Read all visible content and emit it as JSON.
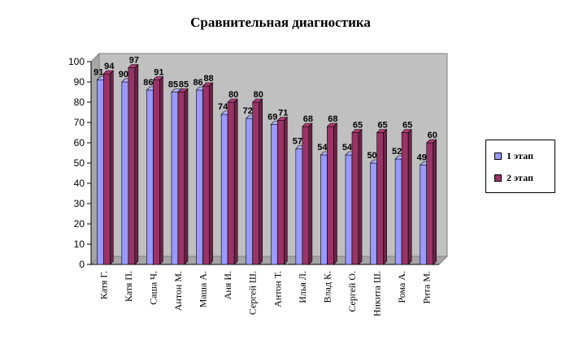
{
  "chart_data": {
    "type": "bar",
    "title": "Сравнительная диагностика",
    "categories": [
      "Катя Г.",
      "Катя П.",
      "Саша Ч.",
      "Антон М.",
      "Маша А.",
      "Аня И.",
      "Сергей Ш.",
      "Антон Т.",
      "Илья Л.",
      "Влад К.",
      "Сергей О.",
      "Никита Ш.",
      "Рома А.",
      "Рита М."
    ],
    "series": [
      {
        "name": "1 этап",
        "values": [
          91,
          90,
          86,
          85,
          86,
          74,
          72,
          69,
          57,
          54,
          54,
          50,
          52,
          49
        ],
        "color": "#9999ff"
      },
      {
        "name": "2 этап",
        "values": [
          94,
          97,
          91,
          85,
          88,
          80,
          80,
          71,
          68,
          68,
          65,
          65,
          65,
          60
        ],
        "color": "#993366"
      }
    ],
    "ylim": [
      0,
      100
    ],
    "yticks": [
      0,
      10,
      20,
      30,
      40,
      50,
      60,
      70,
      80,
      90,
      100
    ],
    "grid": false,
    "legend_position": "right",
    "plot_background": "#c0c0c0"
  }
}
